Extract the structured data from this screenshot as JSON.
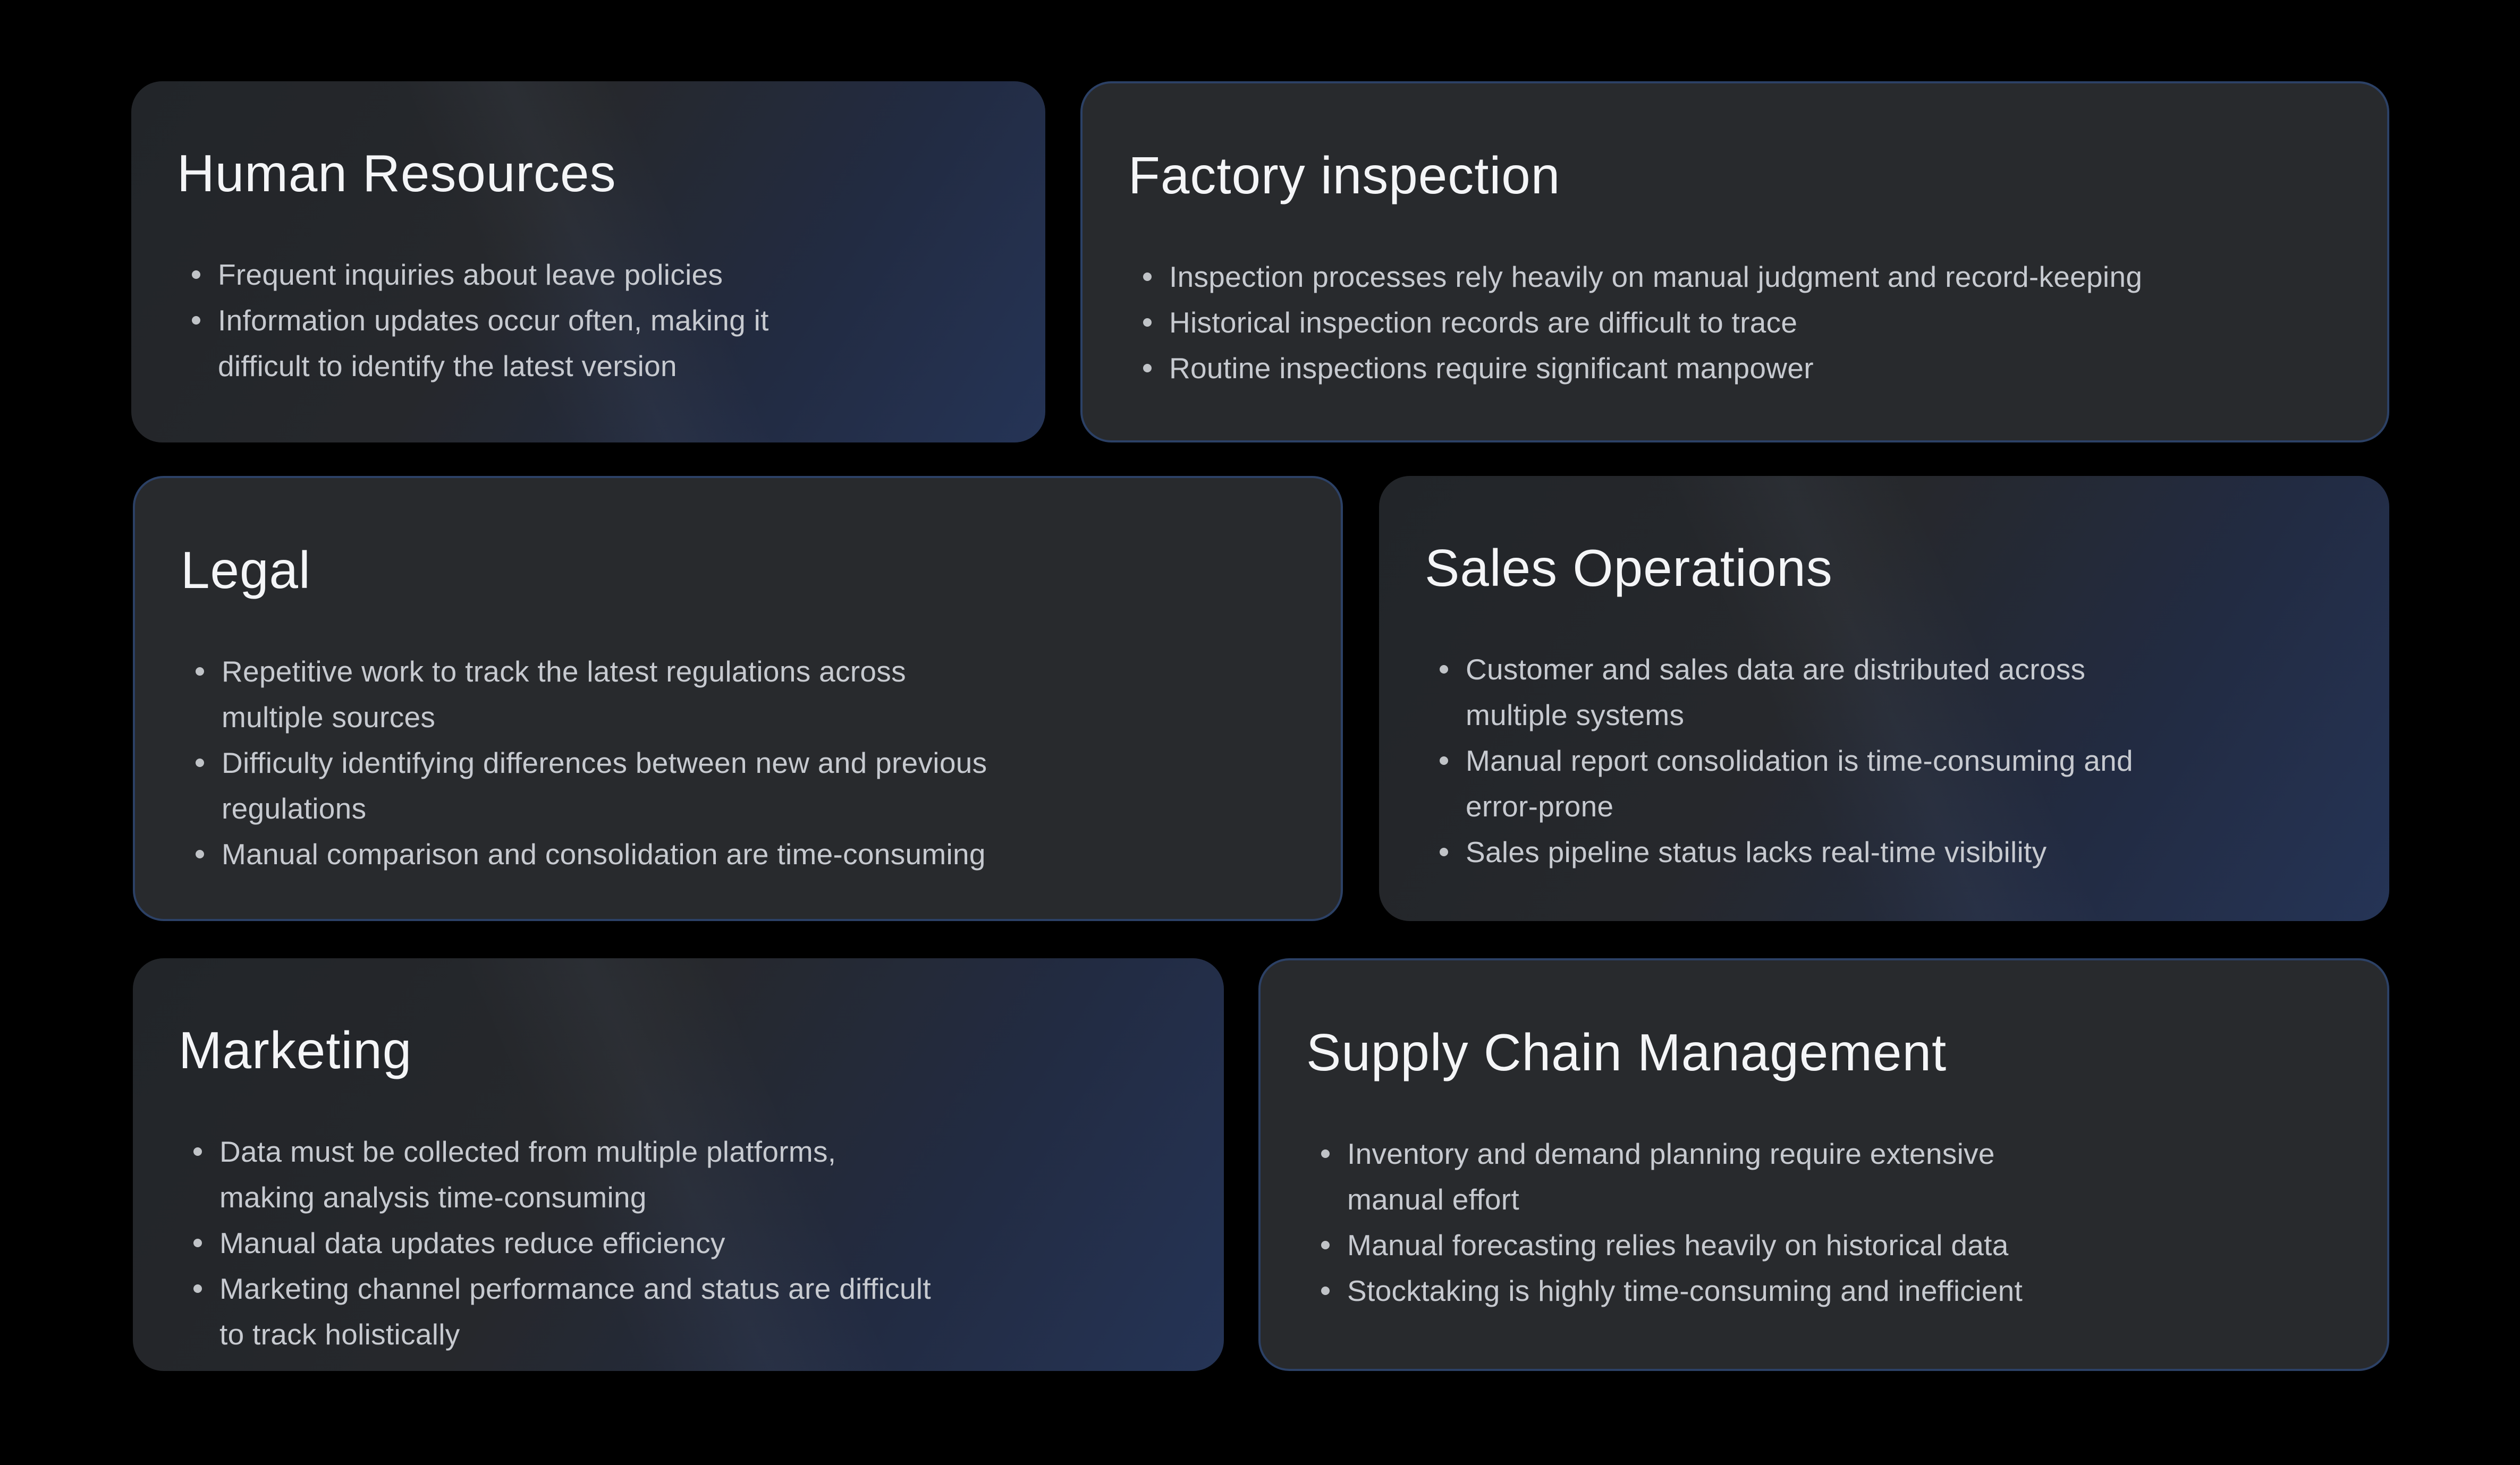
{
  "page": {
    "background": "#000000"
  },
  "colors": {
    "page_bg": "#000000",
    "card_flat_bg": "#282a2d",
    "card_border": "#2c4166",
    "gradient_start": "#222529",
    "gradient_end": "#253456",
    "title_color": "#f4f5f7",
    "bullet_color": "#c7cad0",
    "dot_color": "#c0c3c7"
  },
  "cards": [
    {
      "id": "human-resources",
      "title": "Human Resources",
      "style": "gradient",
      "bullets": [
        "Frequent inquiries about leave policies",
        "Information updates occur often, making it\ndifficult to identify the latest version"
      ]
    },
    {
      "id": "factory-inspection",
      "title": "Factory inspection",
      "style": "flat",
      "bullets": [
        "Inspection processes rely heavily on manual judgment and record-keeping",
        "Historical inspection records are difficult to trace",
        "Routine inspections require significant manpower"
      ]
    },
    {
      "id": "legal",
      "title": "Legal",
      "style": "flat",
      "bullets": [
        "Repetitive work to track the latest regulations across\nmultiple sources",
        "Difficulty identifying differences between new and previous\nregulations",
        "Manual comparison and consolidation are time-consuming"
      ]
    },
    {
      "id": "sales-operations",
      "title": "Sales Operations",
      "style": "gradient",
      "bullets": [
        "Customer and sales data are distributed across\nmultiple systems",
        "Manual report consolidation is time-consuming and\nerror-prone",
        "Sales pipeline status lacks real-time visibility"
      ]
    },
    {
      "id": "marketing",
      "title": "Marketing",
      "style": "gradient",
      "bullets": [
        "Data must be collected from multiple platforms,\nmaking analysis time-consuming",
        "Manual data updates reduce efficiency",
        "Marketing channel performance and status are difficult\nto track holistically"
      ]
    },
    {
      "id": "supply-chain-management",
      "title": "Supply Chain Management",
      "style": "flat",
      "bullets": [
        "Inventory and demand planning require extensive\nmanual effort",
        "Manual forecasting relies heavily on historical data",
        "Stocktaking is highly time-consuming and inefficient"
      ]
    }
  ]
}
